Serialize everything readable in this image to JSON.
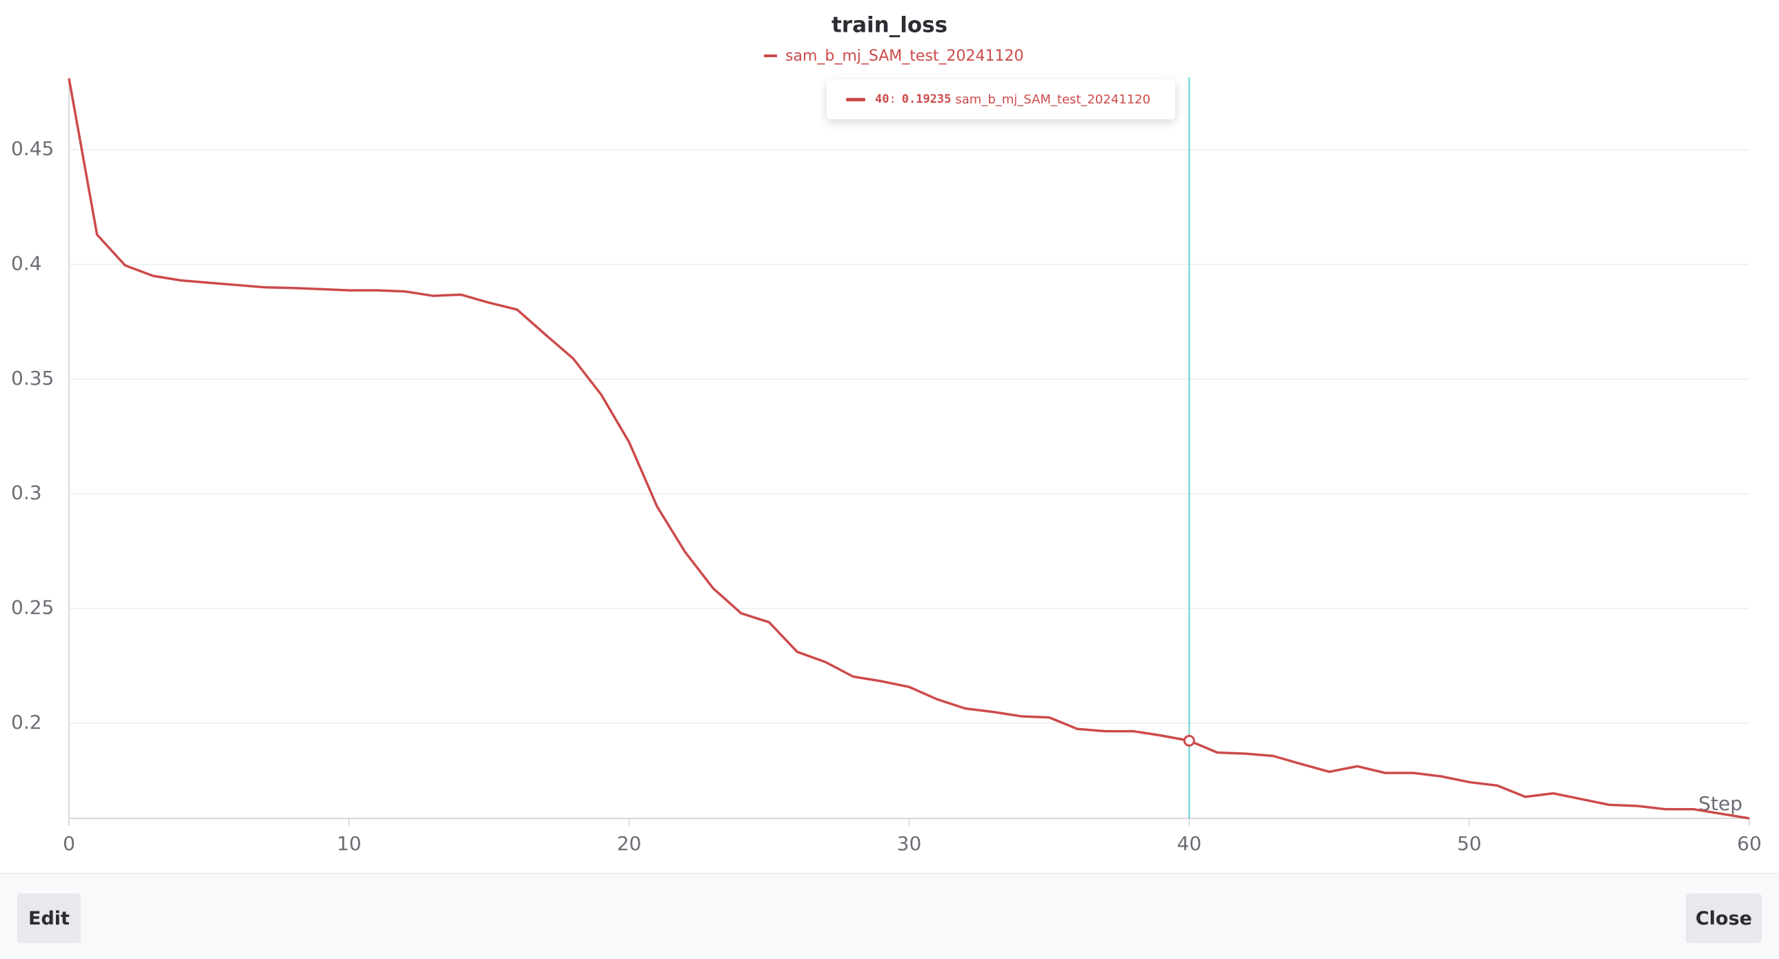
{
  "chart_data": {
    "type": "line",
    "title": "train_loss",
    "x_label": "Step",
    "x": [
      0,
      1,
      2,
      3,
      4,
      5,
      6,
      7,
      8,
      9,
      10,
      11,
      12,
      13,
      14,
      15,
      16,
      17,
      18,
      19,
      20,
      21,
      22,
      23,
      24,
      25,
      26,
      27,
      28,
      29,
      30,
      31,
      32,
      33,
      34,
      35,
      36,
      37,
      38,
      39,
      40,
      41,
      42,
      43,
      44,
      45,
      46,
      47,
      48,
      49,
      50,
      51,
      52,
      53,
      54,
      55,
      56,
      57,
      58,
      59,
      60
    ],
    "series": [
      {
        "name": "sam_b_mj_SAM_test_20241120",
        "color": "#cd4a4a",
        "values": [
          0.481,
          0.413,
          0.3996,
          0.395,
          0.393,
          0.392,
          0.391,
          0.39,
          0.3897,
          0.3892,
          0.3887,
          0.3887,
          0.3882,
          0.3863,
          0.3868,
          0.3833,
          0.3803,
          0.3695,
          0.359,
          0.3433,
          0.3225,
          0.2944,
          0.2746,
          0.2588,
          0.2479,
          0.244,
          0.2311,
          0.2267,
          0.2203,
          0.2183,
          0.2158,
          0.2104,
          0.2064,
          0.2049,
          0.203,
          0.2025,
          0.1975,
          0.1965,
          0.1965,
          0.1946,
          0.19235,
          0.1872,
          0.1867,
          0.1857,
          0.1822,
          0.1788,
          0.1812,
          0.1783,
          0.1783,
          0.1768,
          0.1743,
          0.1728,
          0.1679,
          0.1694,
          0.1669,
          0.1644,
          0.1639,
          0.1625,
          0.1625,
          0.1605,
          0.1585
        ]
      }
    ],
    "xlim": [
      0,
      60
    ],
    "xticks": [
      0,
      10,
      20,
      30,
      40,
      50,
      60
    ],
    "ylim": [
      0.1585,
      0.4816
    ],
    "yticks": [
      0.2,
      0.25,
      0.3,
      0.35,
      0.4,
      0.45
    ],
    "grid": true,
    "tooltip": {
      "step": 40,
      "separator": ":",
      "cursor_color": "#5fd3cf"
    }
  },
  "footer": {
    "left_button": "Edit",
    "right_button": "Close"
  }
}
